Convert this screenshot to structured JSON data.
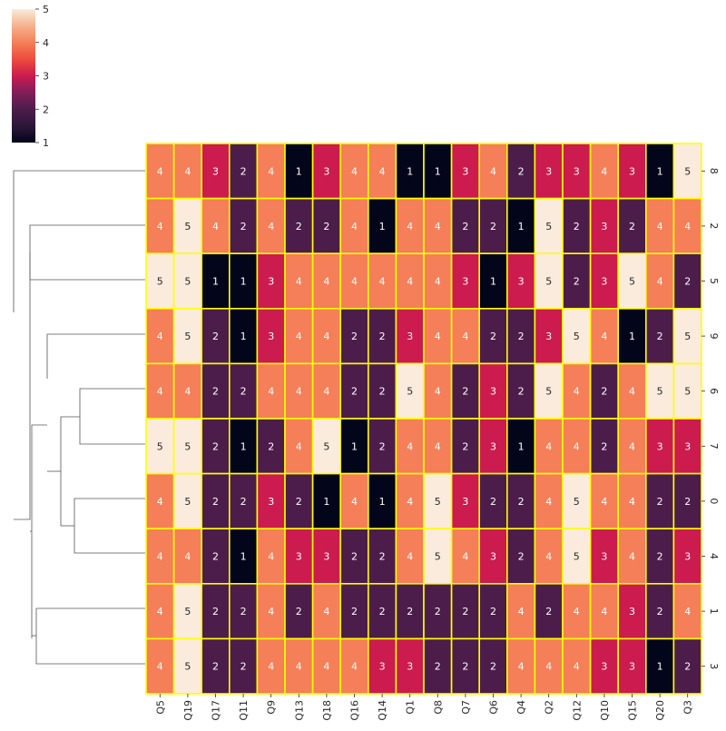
{
  "chart_data": {
    "type": "heatmap",
    "title": "",
    "xlabel": "",
    "ylabel": "",
    "columns": [
      "Q5",
      "Q19",
      "Q17",
      "Q11",
      "Q9",
      "Q13",
      "Q18",
      "Q16",
      "Q14",
      "Q1",
      "Q8",
      "Q7",
      "Q6",
      "Q4",
      "Q2",
      "Q12",
      "Q10",
      "Q15",
      "Q20",
      "Q3"
    ],
    "rows": [
      "8",
      "2",
      "5",
      "9",
      "6",
      "7",
      "0",
      "4",
      "1",
      "3"
    ],
    "values": [
      [
        4,
        4,
        3,
        2,
        4,
        1,
        3,
        4,
        4,
        1,
        1,
        3,
        4,
        2,
        3,
        3,
        4,
        3,
        1,
        5
      ],
      [
        4,
        5,
        4,
        2,
        4,
        2,
        2,
        4,
        1,
        4,
        4,
        2,
        2,
        1,
        5,
        2,
        3,
        2,
        4,
        4
      ],
      [
        5,
        5,
        1,
        1,
        3,
        4,
        4,
        4,
        4,
        4,
        4,
        3,
        1,
        3,
        5,
        2,
        3,
        5,
        4,
        2
      ],
      [
        4,
        5,
        2,
        1,
        3,
        4,
        4,
        2,
        2,
        3,
        4,
        4,
        2,
        2,
        3,
        5,
        4,
        1,
        2,
        5
      ],
      [
        4,
        4,
        2,
        2,
        4,
        4,
        4,
        2,
        2,
        5,
        4,
        2,
        3,
        2,
        5,
        4,
        2,
        4,
        5,
        5
      ],
      [
        5,
        5,
        2,
        1,
        2,
        4,
        5,
        1,
        2,
        4,
        4,
        2,
        3,
        1,
        4,
        4,
        2,
        4,
        3,
        3
      ],
      [
        4,
        5,
        2,
        2,
        3,
        2,
        1,
        4,
        1,
        4,
        5,
        3,
        2,
        2,
        4,
        5,
        4,
        4,
        2,
        2
      ],
      [
        4,
        4,
        2,
        1,
        4,
        3,
        3,
        2,
        2,
        4,
        5,
        4,
        3,
        2,
        4,
        5,
        3,
        4,
        2,
        3
      ],
      [
        4,
        5,
        2,
        2,
        4,
        2,
        4,
        2,
        2,
        2,
        2,
        2,
        2,
        4,
        2,
        4,
        4,
        3,
        2,
        4
      ],
      [
        4,
        5,
        2,
        2,
        4,
        4,
        4,
        4,
        3,
        3,
        2,
        2,
        2,
        4,
        4,
        4,
        3,
        3,
        1,
        2
      ]
    ],
    "colorbar": {
      "min": 1,
      "max": 5,
      "ticks": [
        "1",
        "2",
        "3",
        "4",
        "5"
      ]
    },
    "cell_border_color": "#ffff00",
    "dendrogram": "rows",
    "colors": {
      "1": "#03051a",
      "2": "#4c1d4b",
      "3": "#cb1b4f",
      "4": "#f47f58",
      "5": "#faebdd"
    }
  }
}
